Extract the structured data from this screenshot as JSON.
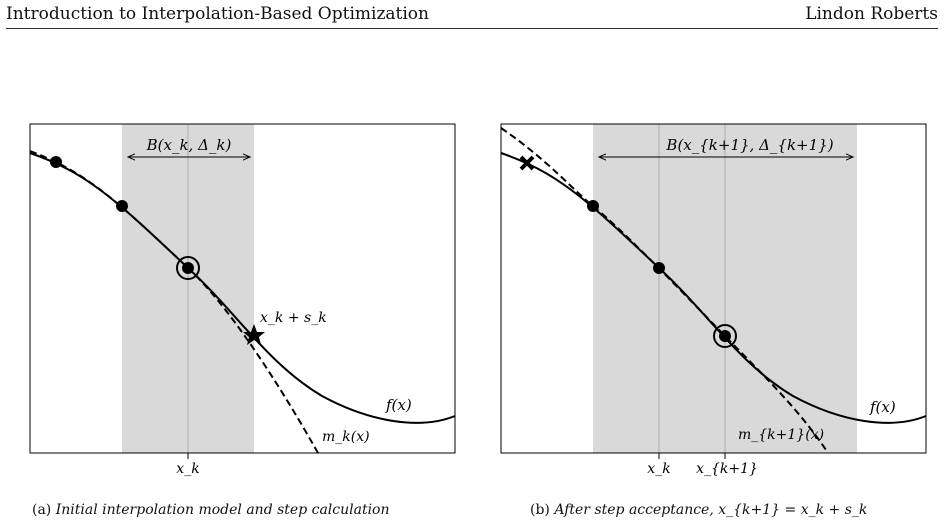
{
  "header": {
    "title": "Introduction to Interpolation-Based Optimization",
    "author": "Lindon Roberts"
  },
  "panel_a": {
    "ball_label": "B(x_k, Δ_k)",
    "f_label": "f(x)",
    "m_label": "m_k(x)",
    "step_label": "x_k + s_k",
    "tick": "x_k",
    "caption_letter": "(a)",
    "caption": "Initial interpolation model and step calculation"
  },
  "panel_b": {
    "ball_label": "B(x_{k+1}, Δ_{k+1})",
    "f_label": "f(x)",
    "m_label": "m_{k+1}(x)",
    "tick_1": "x_k",
    "tick_2": "x_{k+1}",
    "caption_letter": "(b)",
    "caption": "After step acceptance, x_{k+1} = x_k + s_k"
  },
  "colors": {
    "trust_region_fill": "#d9d9d9",
    "curve": "#000000",
    "gridline": "#aaaaaa"
  },
  "markers": {
    "interpolation_point": "filled-circle",
    "current_iterate": "circled-dot",
    "trial_step": "star",
    "discarded_point": "cross"
  }
}
